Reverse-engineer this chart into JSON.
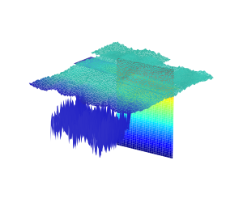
{
  "figsize": [
    3.0,
    2.56
  ],
  "dpi": 100,
  "bg_color": "#ffffff",
  "teal": [
    0.243,
    0.812,
    0.745
  ],
  "teal_dark": [
    0.18,
    0.7,
    0.65
  ],
  "deep_blue": [
    0.18,
    0.18,
    0.78
  ],
  "colormap": "jet",
  "elev": 22,
  "azim": -50
}
